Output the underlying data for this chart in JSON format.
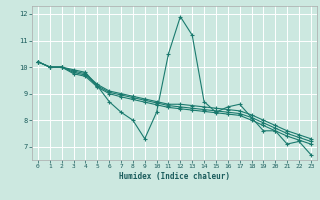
{
  "title": "",
  "xlabel": "Humidex (Indice chaleur)",
  "ylabel": "",
  "bg_color": "#cce8e0",
  "grid_color": "#ffffff",
  "line_color": "#1a7a6e",
  "xlim": [
    -0.5,
    23.5
  ],
  "ylim": [
    6.5,
    12.3
  ],
  "yticks": [
    7,
    8,
    9,
    10,
    11,
    12
  ],
  "xticks": [
    0,
    1,
    2,
    3,
    4,
    5,
    6,
    7,
    8,
    9,
    10,
    11,
    12,
    13,
    14,
    15,
    16,
    17,
    18,
    19,
    20,
    21,
    22,
    23
  ],
  "lines": [
    {
      "x": [
        0,
        1,
        2,
        3,
        4,
        5,
        6,
        7,
        8,
        9,
        10,
        11,
        12,
        13,
        14,
        15,
        16,
        17,
        18,
        19,
        20,
        21,
        22,
        23
      ],
      "y": [
        10.2,
        10.0,
        10.0,
        9.9,
        9.8,
        9.3,
        8.7,
        8.3,
        8.0,
        7.3,
        8.3,
        10.5,
        11.9,
        11.2,
        8.7,
        8.3,
        8.5,
        8.6,
        8.1,
        7.6,
        7.6,
        7.1,
        7.2,
        6.7
      ]
    },
    {
      "x": [
        0,
        1,
        2,
        3,
        4,
        5,
        6,
        7,
        8,
        9,
        10,
        11,
        12,
        13,
        14,
        15,
        16,
        17,
        18,
        19,
        20,
        21,
        22,
        23
      ],
      "y": [
        10.2,
        10.0,
        10.0,
        9.85,
        9.75,
        9.35,
        9.1,
        9.0,
        8.9,
        8.8,
        8.7,
        8.6,
        8.6,
        8.55,
        8.5,
        8.45,
        8.4,
        8.35,
        8.2,
        8.0,
        7.8,
        7.6,
        7.45,
        7.3
      ]
    },
    {
      "x": [
        0,
        1,
        2,
        3,
        4,
        5,
        6,
        7,
        8,
        9,
        10,
        11,
        12,
        13,
        14,
        15,
        16,
        17,
        18,
        19,
        20,
        21,
        22,
        23
      ],
      "y": [
        10.2,
        10.0,
        10.0,
        9.8,
        9.7,
        9.3,
        9.05,
        8.95,
        8.85,
        8.75,
        8.65,
        8.55,
        8.5,
        8.45,
        8.4,
        8.35,
        8.3,
        8.25,
        8.1,
        7.9,
        7.7,
        7.5,
        7.35,
        7.2
      ]
    },
    {
      "x": [
        0,
        1,
        2,
        3,
        4,
        5,
        6,
        7,
        8,
        9,
        10,
        11,
        12,
        13,
        14,
        15,
        16,
        17,
        18,
        19,
        20,
        21,
        22,
        23
      ],
      "y": [
        10.2,
        10.0,
        10.0,
        9.75,
        9.65,
        9.25,
        9.0,
        8.88,
        8.78,
        8.68,
        8.58,
        8.48,
        8.43,
        8.38,
        8.33,
        8.28,
        8.23,
        8.18,
        8.0,
        7.8,
        7.6,
        7.4,
        7.25,
        7.1
      ]
    }
  ]
}
